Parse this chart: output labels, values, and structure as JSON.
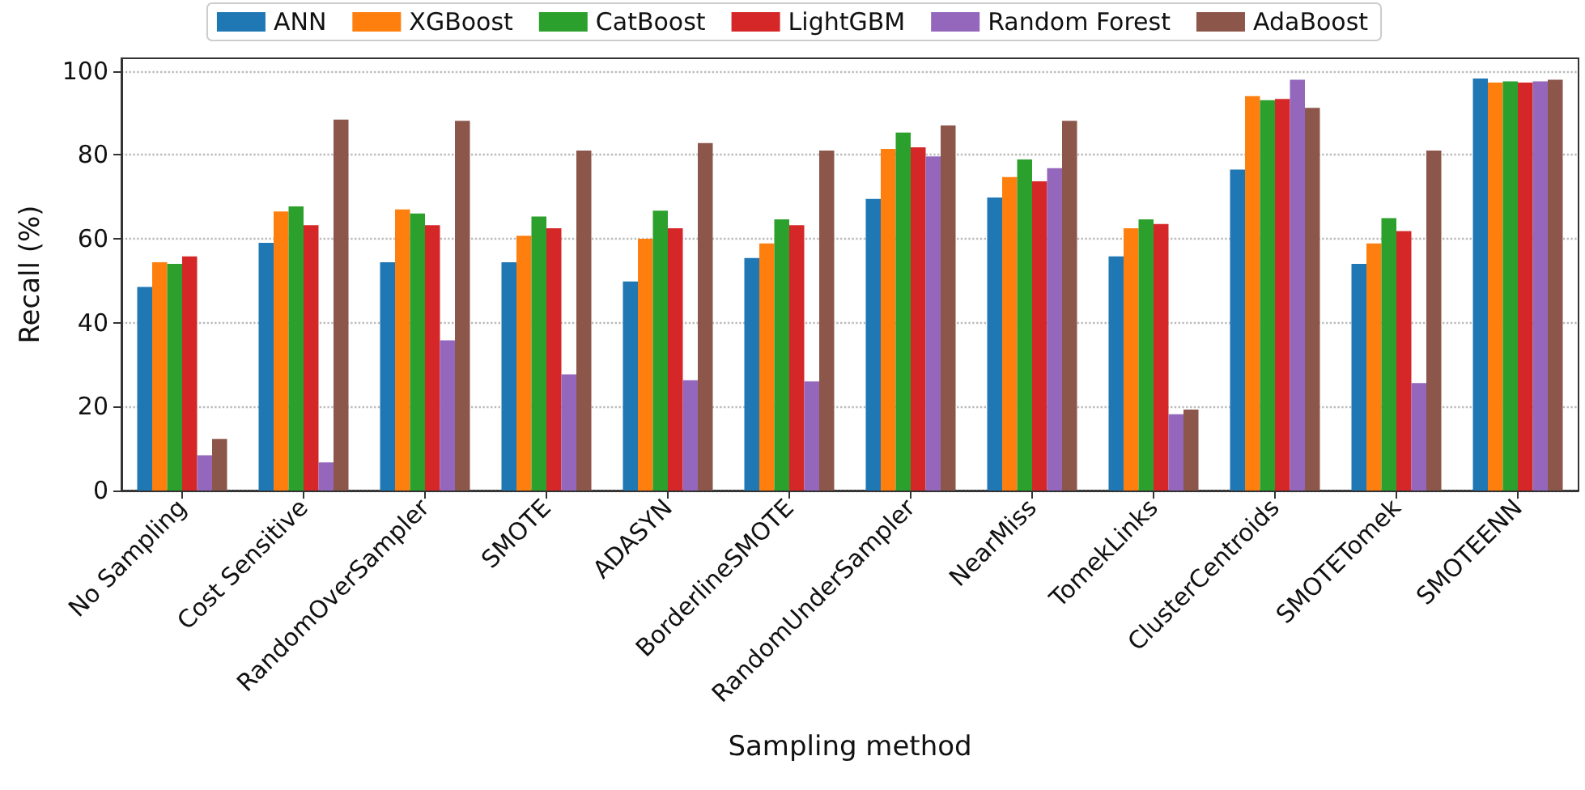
{
  "chart_data": {
    "type": "bar",
    "xlabel": "Sampling method",
    "ylabel": "Recall (%)",
    "categories": [
      "No Sampling",
      "Cost Sensitive",
      "RandomOverSampler",
      "SMOTE",
      "ADASYN",
      "BorderlineSMOTE",
      "RandomUnderSampler",
      "NearMiss",
      "TomekLinks",
      "ClusterCentroids",
      "SMOTETomek",
      "SMOTEENN"
    ],
    "series": [
      {
        "name": "ANN",
        "color": "#1f77b4",
        "values": [
          48.5,
          59,
          54.4,
          54.4,
          49.8,
          55.4,
          69.5,
          69.8,
          55.8,
          76.5,
          54,
          98.2
        ]
      },
      {
        "name": "XGBoost",
        "color": "#ff7f0e",
        "values": [
          54.4,
          66.5,
          67,
          60.7,
          60,
          58.9,
          81.4,
          74.7,
          62.5,
          94,
          58.9,
          97.2
        ]
      },
      {
        "name": "CatBoost",
        "color": "#2ca02c",
        "values": [
          54,
          67.7,
          66,
          65.3,
          66.7,
          64.6,
          85.3,
          78.9,
          64.6,
          93,
          64.9,
          97.5
        ]
      },
      {
        "name": "LightGBM",
        "color": "#d62728",
        "values": [
          55.8,
          63.2,
          63.2,
          62.5,
          62.5,
          63.2,
          81.8,
          73.7,
          63.5,
          93.3,
          61.8,
          97.2
        ]
      },
      {
        "name": "Random Forest",
        "color": "#9467bd",
        "values": [
          8.4,
          6.7,
          35.8,
          27.7,
          26.3,
          26,
          79.6,
          76.8,
          18.2,
          97.9,
          25.6,
          97.5
        ]
      },
      {
        "name": "AdaBoost",
        "color": "#8c564b",
        "values": [
          12.3,
          88.4,
          88.1,
          81,
          82.8,
          81,
          87,
          88.1,
          19.3,
          91.2,
          81,
          97.9
        ]
      }
    ],
    "ylim": [
      0,
      103
    ],
    "yticks": [
      0,
      20,
      40,
      60,
      80,
      100
    ],
    "grid": "y",
    "legend": "top"
  }
}
